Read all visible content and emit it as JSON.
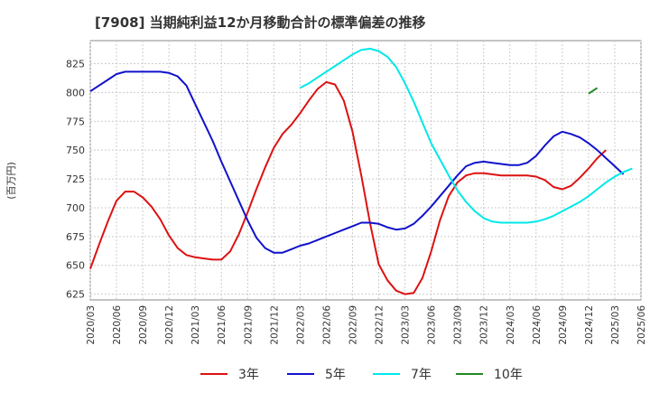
{
  "chart_data": {
    "type": "line",
    "title": "[7908]  当期純利益12か月移動合計の標準偏差の推移",
    "ylabel": "(百万円)",
    "xlabel": "",
    "ylim": [
      620,
      845
    ],
    "yticks": [
      625,
      650,
      675,
      700,
      725,
      750,
      775,
      800,
      825
    ],
    "xticks": [
      "2020/03",
      "2020/06",
      "2020/09",
      "2020/12",
      "2021/03",
      "2021/06",
      "2021/09",
      "2021/12",
      "2022/03",
      "2022/06",
      "2022/09",
      "2022/12",
      "2023/03",
      "2023/06",
      "2023/09",
      "2023/12",
      "2024/03",
      "2024/06",
      "2024/09",
      "2024/12",
      "2025/03",
      "2025/06"
    ],
    "grid": true,
    "legend_position": "bottom",
    "series": [
      {
        "name": "3年",
        "color": "#dd1111",
        "start_index": 0,
        "values": [
          647,
          668,
          688,
          706,
          714,
          714,
          709,
          701,
          690,
          676,
          665,
          659,
          657,
          656,
          655,
          655,
          662,
          677,
          696,
          716,
          735,
          752,
          764,
          772,
          782,
          793,
          803,
          809,
          807,
          793,
          766,
          728,
          687,
          651,
          637,
          628,
          625,
          626,
          639,
          662,
          689,
          710,
          722,
          728,
          730,
          730,
          729,
          728,
          728,
          728,
          728,
          727,
          724,
          718,
          716,
          719,
          726,
          734,
          743,
          750
        ]
      },
      {
        "name": "5年",
        "color": "#1111cc",
        "start_index": 0,
        "values": [
          801,
          806,
          811,
          816,
          818,
          818,
          818,
          818,
          818,
          817,
          814,
          806,
          790,
          774,
          758,
          740,
          723,
          706,
          689,
          674,
          665,
          661,
          661,
          664,
          667,
          669,
          672,
          675,
          678,
          681,
          684,
          687,
          687,
          686,
          683,
          681,
          682,
          686,
          693,
          701,
          710,
          719,
          728,
          736,
          739,
          740,
          739,
          738,
          737,
          737,
          739,
          745,
          754,
          762,
          766,
          764,
          761,
          756,
          750,
          743,
          736,
          729
        ]
      },
      {
        "name": "7年",
        "color": "#00e8e8",
        "start_index": 24,
        "values": [
          804,
          808,
          813,
          818,
          823,
          828,
          833,
          837,
          838,
          836,
          831,
          822,
          808,
          792,
          774,
          756,
          742,
          728,
          715,
          705,
          697,
          691,
          688,
          687,
          687,
          687,
          687,
          688,
          690,
          693,
          697,
          701,
          705,
          710,
          716,
          722,
          727,
          731,
          734
        ]
      },
      {
        "name": "10年",
        "color": "#228822",
        "start_index": 57,
        "values": [
          799,
          804
        ]
      }
    ]
  }
}
